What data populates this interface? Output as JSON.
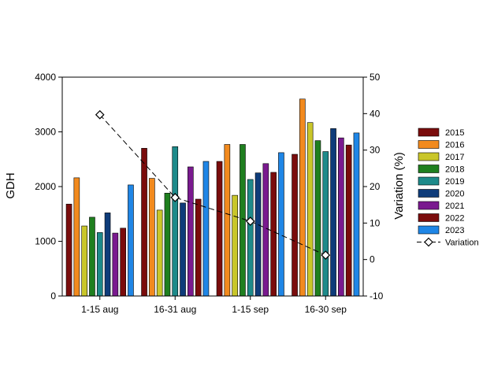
{
  "chart_data": {
    "type": "bar",
    "title": "",
    "categories": [
      "1-15 aug",
      "16-31 aug",
      "1-15 sep",
      "16-30 sep"
    ],
    "xlabel": "",
    "ylabel": "GDH",
    "ylim": [
      0,
      4000
    ],
    "yticks": [
      "0",
      "1000",
      "2000",
      "3000",
      "4000"
    ],
    "y2label": "Variation (%)",
    "y2lim": [
      -10,
      50
    ],
    "y2ticks": [
      "-10",
      "0",
      "10",
      "20",
      "30",
      "40",
      "50"
    ],
    "legend_position": "right",
    "series": [
      {
        "name": "2015",
        "color": "#7a0c0c",
        "values": [
          1680,
          2700,
          2460,
          2590
        ]
      },
      {
        "name": "2016",
        "color": "#f28a1e",
        "values": [
          2160,
          2150,
          2770,
          3600
        ]
      },
      {
        "name": "2017",
        "color": "#c9c62a",
        "values": [
          1280,
          1570,
          1840,
          3170
        ]
      },
      {
        "name": "2018",
        "color": "#1f7f1f",
        "values": [
          1440,
          1880,
          2770,
          2840
        ]
      },
      {
        "name": "2019",
        "color": "#1e8a8a",
        "values": [
          1160,
          2730,
          2130,
          2640
        ]
      },
      {
        "name": "2020",
        "color": "#0f3c7a",
        "values": [
          1520,
          1700,
          2250,
          3060
        ]
      },
      {
        "name": "2021",
        "color": "#7a1a8f",
        "values": [
          1150,
          2360,
          2420,
          2890
        ]
      },
      {
        "name": "2022",
        "color": "#7a0c0c",
        "values": [
          1240,
          1770,
          2260,
          2760
        ]
      },
      {
        "name": "2023",
        "color": "#1f86e6",
        "values": [
          2030,
          2460,
          2620,
          2980
        ]
      }
    ],
    "line_series": {
      "name": "Variation",
      "axis": "right",
      "values": [
        39.7,
        17.0,
        10.5,
        1.2
      ]
    }
  }
}
